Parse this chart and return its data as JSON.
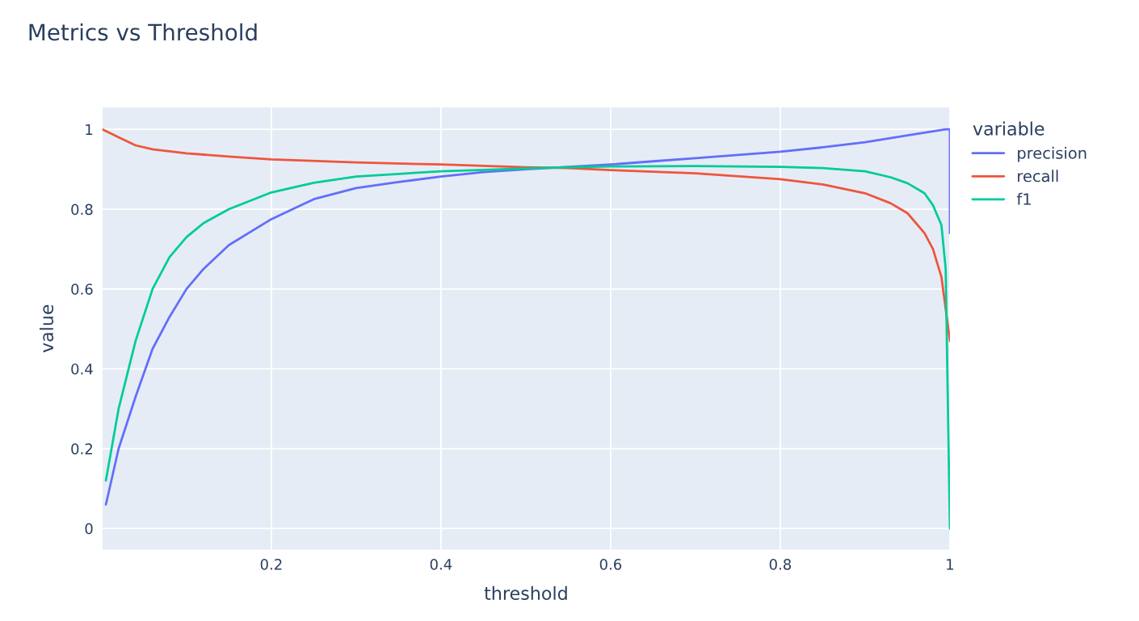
{
  "chart_data": {
    "type": "line",
    "title": "Metrics vs Threshold",
    "xlabel": "threshold",
    "ylabel": "value",
    "legend_title": "variable",
    "legend": "right",
    "grid": true,
    "xlim": [
      0.001,
      1
    ],
    "xticks": [
      0.2,
      0.4,
      0.6,
      0.8,
      1
    ],
    "ylim": [
      -0.053,
      1.055
    ],
    "yticks": [
      0,
      0.2,
      0.4,
      0.6,
      0.8,
      1
    ],
    "series": [
      {
        "name": "precision",
        "color": "#636efa",
        "x": [
          0.005,
          0.02,
          0.04,
          0.06,
          0.08,
          0.1,
          0.12,
          0.15,
          0.2,
          0.25,
          0.3,
          0.35,
          0.4,
          0.45,
          0.5,
          0.6,
          0.65,
          0.7,
          0.75,
          0.8,
          0.85,
          0.9,
          0.95,
          0.995,
          1,
          1
        ],
        "values": [
          0.06,
          0.2,
          0.33,
          0.45,
          0.53,
          0.6,
          0.65,
          0.71,
          0.775,
          0.825,
          0.853,
          0.868,
          0.882,
          0.893,
          0.9,
          0.912,
          0.92,
          0.928,
          0.936,
          0.944,
          0.955,
          0.968,
          0.985,
          1.0,
          1.0,
          0.74
        ]
      },
      {
        "name": "recall",
        "color": "#ef553b",
        "x": [
          0.001,
          0.02,
          0.04,
          0.06,
          0.1,
          0.15,
          0.2,
          0.3,
          0.4,
          0.5,
          0.55,
          0.6,
          0.7,
          0.8,
          0.85,
          0.9,
          0.93,
          0.95,
          0.97,
          0.98,
          0.99,
          0.995,
          1
        ],
        "values": [
          1.0,
          0.98,
          0.96,
          0.95,
          0.94,
          0.932,
          0.925,
          0.917,
          0.912,
          0.905,
          0.903,
          0.898,
          0.89,
          0.875,
          0.862,
          0.84,
          0.815,
          0.79,
          0.74,
          0.7,
          0.63,
          0.55,
          0.47
        ]
      },
      {
        "name": "f1",
        "color": "#00cc96",
        "x": [
          0.005,
          0.02,
          0.04,
          0.06,
          0.08,
          0.1,
          0.12,
          0.15,
          0.2,
          0.25,
          0.3,
          0.4,
          0.5,
          0.55,
          0.6,
          0.7,
          0.8,
          0.85,
          0.9,
          0.93,
          0.95,
          0.97,
          0.98,
          0.99,
          0.995,
          1
        ],
        "values": [
          0.12,
          0.3,
          0.47,
          0.6,
          0.68,
          0.73,
          0.765,
          0.8,
          0.842,
          0.866,
          0.882,
          0.895,
          0.902,
          0.905,
          0.907,
          0.908,
          0.906,
          0.903,
          0.895,
          0.88,
          0.865,
          0.84,
          0.81,
          0.76,
          0.65,
          0.0
        ]
      }
    ]
  }
}
